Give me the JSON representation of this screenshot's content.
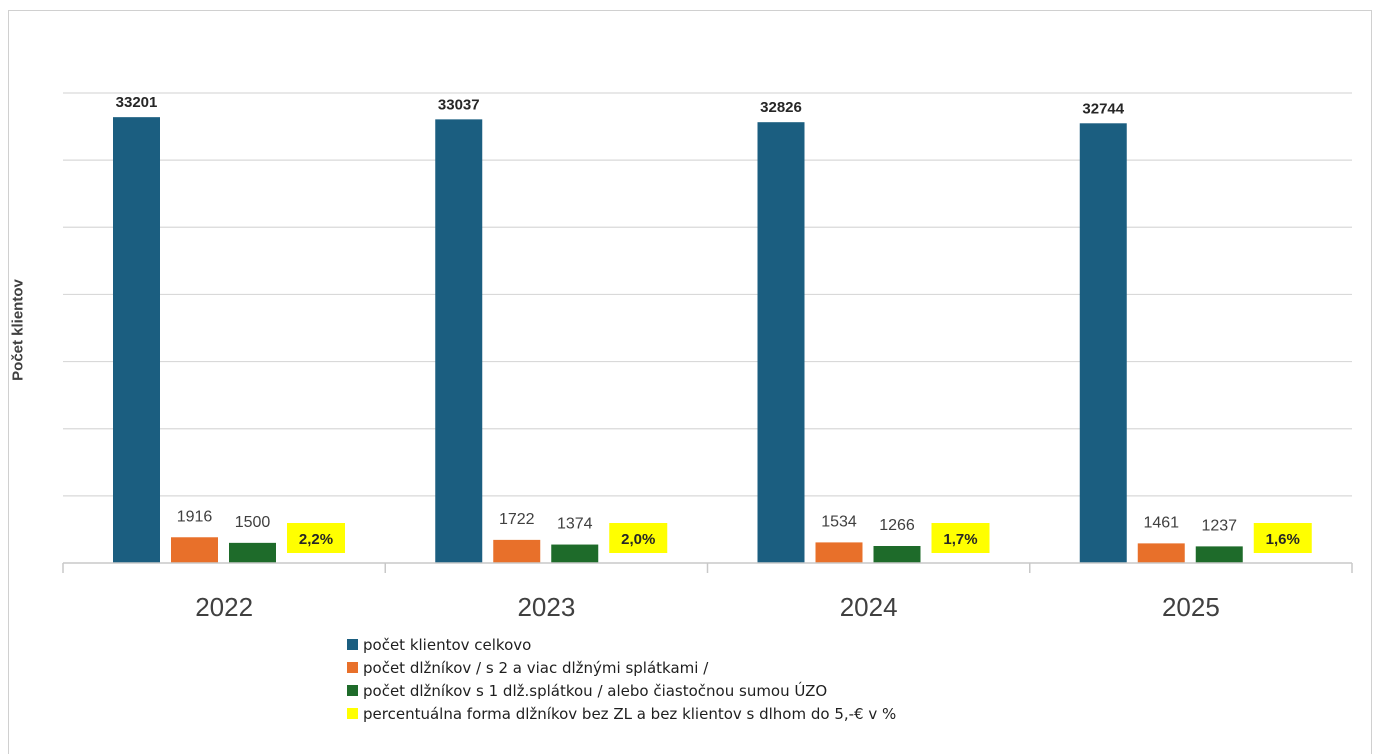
{
  "chart_data": {
    "type": "bar",
    "categories": [
      "2022",
      "2023",
      "2024",
      "2025"
    ],
    "ylabel": "Počet klientov",
    "ylim": [
      0,
      35000
    ],
    "grid": true,
    "legend_position": "bottom",
    "series": [
      {
        "name": "počet klientov celkovo",
        "color": "#1b5e80",
        "values": [
          33201,
          33037,
          32826,
          32744
        ],
        "labels": [
          "33201",
          "33037",
          "32826",
          "32744"
        ]
      },
      {
        "name": "počet dlžníkov / s 2 a viac dlžnými splátkami /",
        "color": "#e8702a",
        "values": [
          1916,
          1722,
          1534,
          1461
        ],
        "labels": [
          "1916",
          "1722",
          "1534",
          "1461"
        ]
      },
      {
        "name": "počet dlžníkov s 1 dlž.splátkou / alebo čiastočnou sumou ÚZO",
        "color": "#1e6b2a",
        "values": [
          1500,
          1374,
          1266,
          1237
        ],
        "labels": [
          "1500",
          "1374",
          "1266",
          "1237"
        ]
      },
      {
        "name": "percentuálna forma dlžníkov bez ZL a bez klientov s dlhom do 5,-€ v %",
        "color": "#ffff00",
        "values": [
          2.2,
          2.0,
          1.7,
          1.6
        ],
        "labels": [
          "2,2%",
          "2,0%",
          "1,7%",
          "1,6%"
        ]
      }
    ]
  }
}
